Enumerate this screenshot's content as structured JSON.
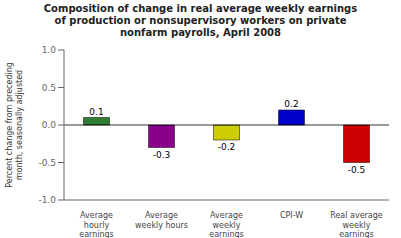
{
  "chart_data": {
    "type": "bar",
    "title": "Composition of change in real average weekly earnings\nof production or nonsupervisory workers on private\nnonfarm payrolls, April 2008",
    "ylabel": "Percent change from preceding\nmonth, seasonally adjusted",
    "categories": [
      "Average\nhourly\nearnings",
      "Average\nweekly hours",
      "Average\nweekly\nearnings",
      "CPI-W",
      "Real average\nweekly\nearnings"
    ],
    "values": [
      0.1,
      -0.3,
      -0.2,
      0.2,
      -0.5
    ],
    "colors": [
      "#2e7d32",
      "#8b008b",
      "#cccc00",
      "#0000cd",
      "#cc0000"
    ],
    "ylim": [
      -1.0,
      1.0
    ],
    "yticks": [
      {
        "value": -1.0,
        "label": "-1.0"
      },
      -0.5,
      {
        "value": 0.0,
        "label": "0.0"
      },
      0.5,
      {
        "value": 1.0,
        "label": "1.0"
      }
    ],
    "data_labels": true
  }
}
